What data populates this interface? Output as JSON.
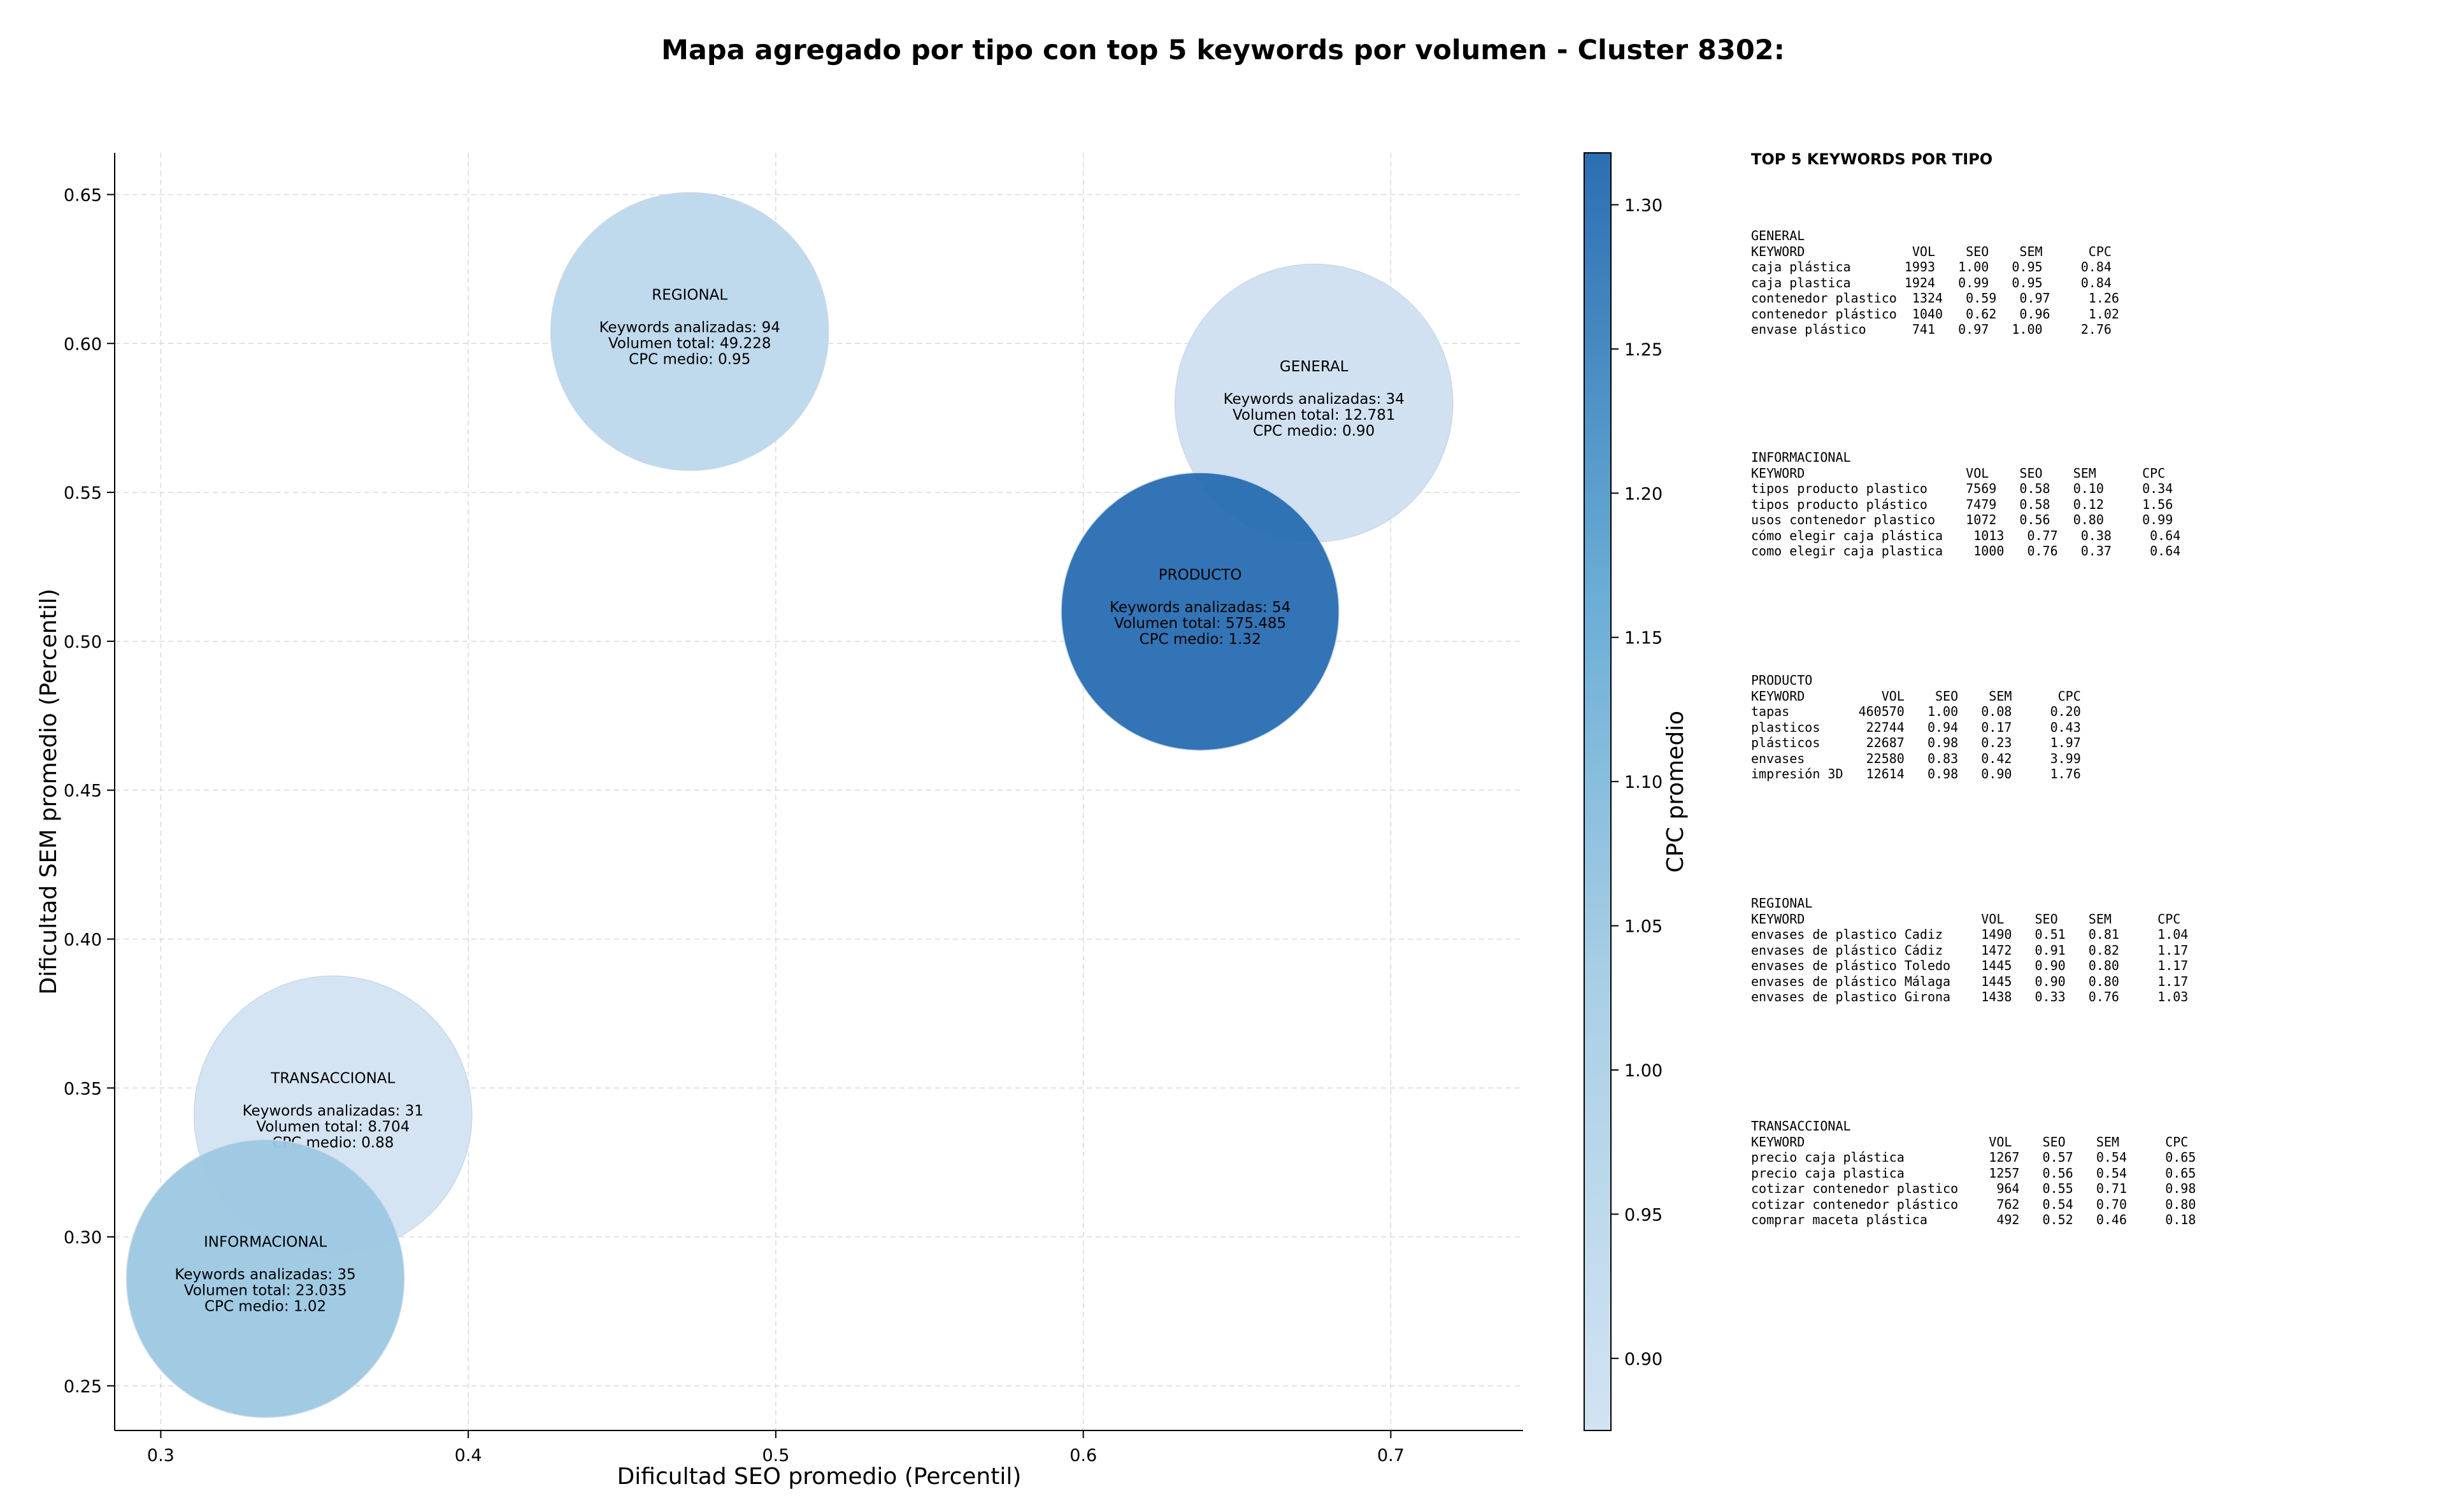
{
  "chart_data": {
    "type": "scatter",
    "title": "Mapa agregado por tipo con top 5 keywords por volumen - Cluster 8302:",
    "xlabel": "Dificultad SEO promedio (Percentil)",
    "ylabel": "Dificultad SEM promedio (Percentil)",
    "xlim": [
      0.285,
      0.743
    ],
    "ylim": [
      0.235,
      0.664
    ],
    "xticks": [
      "0.3",
      "0.4",
      "0.5",
      "0.6",
      "0.7"
    ],
    "yticks": [
      "0.25",
      "0.30",
      "0.35",
      "0.40",
      "0.45",
      "0.50",
      "0.55",
      "0.60",
      "0.65"
    ],
    "grid": true,
    "colorbar": {
      "label": "CPC promedio",
      "range": [
        0.875,
        1.318
      ],
      "ticks": [
        "0.90",
        "0.95",
        "1.00",
        "1.05",
        "1.10",
        "1.15",
        "1.20",
        "1.25",
        "1.30"
      ],
      "colormap": [
        "#d2e3f3",
        "#9ecae1",
        "#6baed6",
        "#2b6fb3"
      ]
    },
    "points": [
      {
        "name": "REGIONAL",
        "x": 0.472,
        "y": 0.604,
        "cpc": 0.95,
        "kw_line": "Keywords analizadas: 94",
        "vol_line": "Volumen total: 49.228",
        "cpc_line": "CPC medio: 0.95",
        "color": "#bcd7ec"
      },
      {
        "name": "GENERAL",
        "x": 0.675,
        "y": 0.58,
        "cpc": 0.9,
        "kw_line": "Keywords analizadas: 34",
        "vol_line": "Volumen total: 12.781",
        "cpc_line": "CPC medio: 0.90",
        "color": "#cfe0f1"
      },
      {
        "name": "PRODUCTO",
        "x": 0.638,
        "y": 0.51,
        "cpc": 1.32,
        "kw_line": "Keywords analizadas: 54",
        "vol_line": "Volumen total: 575.485",
        "cpc_line": "CPC medio: 1.32",
        "color": "#2a6eb2"
      },
      {
        "name": "TRANSACCIONAL",
        "x": 0.356,
        "y": 0.341,
        "cpc": 0.88,
        "kw_line": "Keywords analizadas: 31",
        "vol_line": "Volumen total: 8.704",
        "cpc_line": "CPC medio: 0.88",
        "color": "#d3e3f3"
      },
      {
        "name": "INFORMACIONAL",
        "x": 0.334,
        "y": 0.286,
        "cpc": 1.02,
        "kw_line": "Keywords analizadas: 35",
        "vol_line": "Volumen total: 23.035",
        "cpc_line": "CPC medio: 1.02",
        "color": "#9dc8e2"
      }
    ]
  },
  "side_panel": {
    "heading": "TOP 5 KEYWORDS POR TIPO",
    "groups": [
      {
        "name": "GENERAL",
        "header": "KEYWORD              VOL    SEO    SEM      CPC",
        "rows": [
          "caja plástica       1993   1.00   0.95     0.84",
          "caja plastica       1924   0.99   0.95     0.84",
          "contenedor plastico  1324   0.59   0.97     1.26",
          "contenedor plástico  1040   0.62   0.96     1.02",
          "envase plástico      741   0.97   1.00     2.76"
        ]
      },
      {
        "name": "INFORMACIONAL",
        "header": "KEYWORD                     VOL    SEO    SEM      CPC",
        "rows": [
          "tipos producto plastico     7569   0.58   0.10     0.34",
          "tipos producto plástico     7479   0.58   0.12     1.56",
          "usos contenedor plastico    1072   0.56   0.80     0.99",
          "cómo elegir caja plástica    1013   0.77   0.38     0.64",
          "como elegir caja plastica    1000   0.76   0.37     0.64"
        ]
      },
      {
        "name": "PRODUCTO",
        "header": "KEYWORD          VOL    SEO    SEM      CPC",
        "rows": [
          "tapas         460570   1.00   0.08     0.20",
          "plasticos      22744   0.94   0.17     0.43",
          "plásticos      22687   0.98   0.23     1.97",
          "envases        22580   0.83   0.42     3.99",
          "impresión 3D   12614   0.98   0.90     1.76"
        ]
      },
      {
        "name": "REGIONAL",
        "header": "KEYWORD                       VOL    SEO    SEM      CPC",
        "rows": [
          "envases de plastico Cadiz     1490   0.51   0.81     1.04",
          "envases de plástico Cádiz     1472   0.91   0.82     1.17",
          "envases de plástico Toledo    1445   0.90   0.80     1.17",
          "envases de plástico Málaga    1445   0.90   0.80     1.17",
          "envases de plastico Girona    1438   0.33   0.76     1.03"
        ]
      },
      {
        "name": "TRANSACCIONAL",
        "header": "KEYWORD                        VOL    SEO    SEM      CPC",
        "rows": [
          "precio caja plástica           1267   0.57   0.54     0.65",
          "precio caja plastica           1257   0.56   0.54     0.65",
          "cotizar contenedor plastico     964   0.55   0.71     0.98",
          "cotizar contenedor plástico     762   0.54   0.70     0.80",
          "comprar maceta plástica         492   0.52   0.46     0.18"
        ]
      }
    ]
  }
}
